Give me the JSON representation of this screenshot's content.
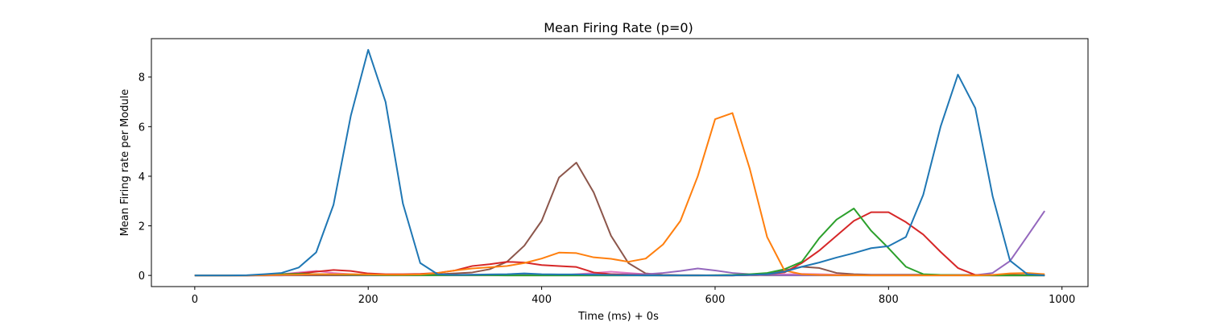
{
  "chart_data": {
    "type": "line",
    "title": "Mean Firing Rate (p=0)",
    "xlabel": "Time (ms) + 0s",
    "ylabel": "Mean Firing rate per Module",
    "xlim": [
      -50,
      1030
    ],
    "ylim": [
      -0.45,
      9.55
    ],
    "xticks": [
      0,
      200,
      400,
      600,
      800,
      1000
    ],
    "yticks": [
      0,
      2,
      4,
      6,
      8
    ],
    "grid": false,
    "legend": "none",
    "x": [
      0,
      20,
      40,
      60,
      80,
      100,
      120,
      140,
      160,
      180,
      200,
      220,
      240,
      260,
      280,
      300,
      320,
      340,
      360,
      380,
      400,
      420,
      440,
      460,
      480,
      500,
      520,
      540,
      560,
      580,
      600,
      620,
      640,
      660,
      680,
      700,
      720,
      740,
      760,
      780,
      800,
      820,
      840,
      860,
      880,
      900,
      920,
      940,
      960,
      980
    ],
    "series": [
      {
        "color": "#1f77b4",
        "values": [
          0.0,
          0.0,
          0.0,
          0.01,
          0.05,
          0.1,
          0.32,
          0.93,
          2.85,
          6.45,
          9.1,
          7.0,
          2.9,
          0.5,
          0.05,
          0.02,
          0.03,
          0.04,
          0.05,
          0.08,
          0.05,
          0.04,
          0.04,
          0.03,
          0.02,
          0.01,
          0.0,
          0.0,
          0.0,
          0.0,
          0.0,
          0.0,
          0.02,
          0.05,
          0.15,
          0.35,
          0.52,
          0.72,
          0.9,
          1.1,
          1.18,
          1.55,
          3.25,
          6.0,
          8.1,
          6.75,
          3.2,
          0.6,
          0.05,
          0.0
        ]
      },
      {
        "color": "#ff7f0e",
        "values": [
          0.0,
          0.0,
          0.0,
          0.0,
          0.01,
          0.02,
          0.03,
          0.05,
          0.05,
          0.05,
          0.04,
          0.03,
          0.03,
          0.04,
          0.1,
          0.2,
          0.28,
          0.33,
          0.38,
          0.5,
          0.68,
          0.92,
          0.9,
          0.73,
          0.67,
          0.55,
          0.68,
          1.25,
          2.2,
          4.0,
          6.3,
          6.55,
          4.3,
          1.55,
          0.2,
          0.05,
          0.02,
          0.01,
          0.01,
          0.0,
          0.0,
          0.0,
          0.0,
          0.0,
          0.0,
          0.0,
          0.02,
          0.08,
          0.1,
          0.05
        ]
      },
      {
        "color": "#2ca02c",
        "values": [
          0.0,
          0.0,
          0.0,
          0.0,
          0.02,
          0.05,
          0.06,
          0.05,
          0.04,
          0.03,
          0.02,
          0.01,
          0.01,
          0.01,
          0.01,
          0.01,
          0.01,
          0.01,
          0.0,
          0.0,
          0.0,
          0.0,
          0.0,
          0.0,
          0.0,
          0.0,
          0.0,
          0.0,
          0.0,
          0.0,
          0.01,
          0.02,
          0.05,
          0.1,
          0.25,
          0.55,
          1.5,
          2.25,
          2.7,
          1.8,
          1.1,
          0.35,
          0.05,
          0.02,
          0.01,
          0.0,
          0.0,
          0.0,
          0.0,
          0.0
        ]
      },
      {
        "color": "#d62728",
        "values": [
          0.0,
          0.0,
          0.0,
          0.0,
          0.01,
          0.05,
          0.08,
          0.15,
          0.22,
          0.18,
          0.08,
          0.05,
          0.05,
          0.06,
          0.1,
          0.2,
          0.38,
          0.45,
          0.55,
          0.52,
          0.42,
          0.38,
          0.34,
          0.12,
          0.05,
          0.02,
          0.01,
          0.0,
          0.0,
          0.0,
          0.0,
          0.0,
          0.02,
          0.05,
          0.12,
          0.5,
          1.0,
          1.6,
          2.2,
          2.55,
          2.55,
          2.15,
          1.65,
          0.95,
          0.3,
          0.02,
          0.0,
          0.0,
          0.0,
          0.0
        ]
      },
      {
        "color": "#9467bd",
        "values": [
          0.0,
          0.0,
          0.0,
          0.0,
          0.0,
          0.0,
          0.02,
          0.05,
          0.05,
          0.03,
          0.01,
          0.01,
          0.01,
          0.01,
          0.01,
          0.02,
          0.03,
          0.03,
          0.03,
          0.02,
          0.02,
          0.02,
          0.03,
          0.05,
          0.05,
          0.05,
          0.05,
          0.1,
          0.18,
          0.28,
          0.2,
          0.1,
          0.05,
          0.02,
          0.01,
          0.01,
          0.01,
          0.01,
          0.01,
          0.01,
          0.01,
          0.01,
          0.01,
          0.01,
          0.01,
          0.01,
          0.1,
          0.58,
          1.58,
          2.6
        ]
      },
      {
        "color": "#8c564b",
        "values": [
          0.0,
          0.0,
          0.0,
          0.0,
          0.0,
          0.01,
          0.01,
          0.01,
          0.01,
          0.01,
          0.01,
          0.01,
          0.02,
          0.03,
          0.05,
          0.08,
          0.12,
          0.25,
          0.55,
          1.2,
          2.2,
          3.95,
          4.55,
          3.35,
          1.6,
          0.5,
          0.08,
          0.02,
          0.01,
          0.01,
          0.0,
          0.0,
          0.02,
          0.05,
          0.2,
          0.35,
          0.3,
          0.1,
          0.05,
          0.03,
          0.03,
          0.03,
          0.03,
          0.02,
          0.02,
          0.02,
          0.02,
          0.02,
          0.02,
          0.02
        ]
      },
      {
        "color": "#e377c2",
        "values": [
          0.0,
          0.0,
          0.0,
          0.0,
          0.01,
          0.05,
          0.12,
          0.18,
          0.1,
          0.05,
          0.02,
          0.01,
          0.01,
          0.01,
          0.01,
          0.01,
          0.01,
          0.01,
          0.01,
          0.01,
          0.01,
          0.01,
          0.05,
          0.1,
          0.15,
          0.1,
          0.05,
          0.02,
          0.01,
          0.01,
          0.01,
          0.01,
          0.01,
          0.02,
          0.04,
          0.06,
          0.05,
          0.03,
          0.02,
          0.01,
          0.01,
          0.01,
          0.01,
          0.01,
          0.01,
          0.01,
          0.01,
          0.01,
          0.01,
          0.01
        ]
      },
      {
        "color": "#7f7f7f",
        "values": [
          0.0,
          0.0,
          0.0,
          0.0,
          0.0,
          0.0,
          0.0,
          0.0,
          0.0,
          0.0,
          0.0,
          0.0,
          0.0,
          0.0,
          0.0,
          0.0,
          0.0,
          0.0,
          0.0,
          0.0,
          0.0,
          0.0,
          0.0,
          0.0,
          0.0,
          0.0,
          0.0,
          0.0,
          0.0,
          0.0,
          0.0,
          0.0,
          0.0,
          0.0,
          0.0,
          0.0,
          0.0,
          0.0,
          0.0,
          0.0,
          0.0,
          0.0,
          0.0,
          0.0,
          0.0,
          0.0,
          0.0,
          0.0,
          0.0,
          0.0
        ]
      }
    ]
  }
}
